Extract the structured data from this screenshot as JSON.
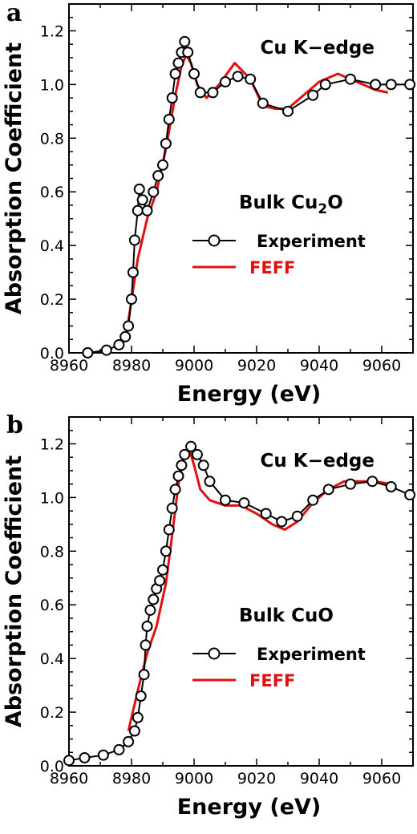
{
  "chart_data": [
    {
      "type": "line",
      "panel": "a",
      "xlabel": "Energy (eV)",
      "ylabel": "Absorption Coefficient",
      "xlim": [
        8960,
        9070
      ],
      "ylim": [
        0.0,
        1.3
      ],
      "xticks": [
        "8960",
        "8980",
        "9000",
        "9020",
        "9040",
        "9060"
      ],
      "yticks": [
        "0.0",
        "0.2",
        "0.4",
        "0.6",
        "0.8",
        "1.0",
        "1.2"
      ],
      "edge_label": "Cu K−edge",
      "sample": {
        "prefix": "Bulk Cu",
        "sub": "2",
        "suffix": "O"
      },
      "legend_placement": "center-right",
      "series": [
        {
          "name": "Experiment",
          "color": "#000000",
          "marker": "open-circle",
          "x": [
            8966,
            8972,
            8976,
            8978,
            8979,
            8980,
            8980.5,
            8981,
            8982,
            8982.5,
            8983.5,
            8985,
            8987,
            8988.5,
            8990,
            8991,
            8992,
            8993,
            8994,
            8995,
            8996,
            8997,
            8998,
            9000,
            9002,
            9006,
            9010,
            9014,
            9018,
            9022,
            9030,
            9038,
            9042,
            9050,
            9058,
            9063,
            9069
          ],
          "y": [
            0.0,
            0.01,
            0.03,
            0.06,
            0.1,
            0.2,
            0.3,
            0.42,
            0.53,
            0.61,
            0.57,
            0.53,
            0.6,
            0.66,
            0.7,
            0.78,
            0.87,
            0.95,
            1.04,
            1.08,
            1.12,
            1.16,
            1.12,
            1.04,
            0.97,
            0.97,
            1.01,
            1.03,
            1.02,
            0.93,
            0.9,
            0.96,
            1.0,
            1.02,
            1.0,
            1.0,
            1.0
          ]
        },
        {
          "name": "FEFF",
          "color": "#e01010",
          "marker": "none",
          "x": [
            8979,
            8982,
            8985,
            8988,
            8991,
            8994,
            8996,
            8997.5,
            8999,
            9001,
            9004,
            9008,
            9013,
            9018,
            9022,
            9026,
            9030,
            9035,
            9040,
            9046,
            9050,
            9054,
            9058,
            9062
          ],
          "y": [
            0.12,
            0.35,
            0.5,
            0.6,
            0.76,
            0.96,
            1.07,
            1.11,
            1.08,
            1.0,
            0.95,
            1.0,
            1.08,
            1.02,
            0.92,
            0.91,
            0.91,
            0.96,
            1.01,
            1.04,
            1.02,
            1.0,
            0.98,
            0.97
          ]
        }
      ]
    },
    {
      "type": "line",
      "panel": "b",
      "xlabel": "Energy (eV)",
      "ylabel": "Absorption Coefficient",
      "xlim": [
        8960,
        9070
      ],
      "ylim": [
        0.0,
        1.3
      ],
      "xticks": [
        "8960",
        "8980",
        "9000",
        "9020",
        "9040",
        "9060"
      ],
      "yticks": [
        "0.0",
        "0.2",
        "0.4",
        "0.6",
        "0.8",
        "1.0",
        "1.2"
      ],
      "edge_label": "Cu K−edge",
      "sample": {
        "prefix": "Bulk CuO",
        "sub": "",
        "suffix": ""
      },
      "legend_placement": "center-right",
      "series": [
        {
          "name": "Experiment",
          "color": "#000000",
          "marker": "open-circle",
          "x": [
            8960,
            8965,
            8971,
            8976,
            8979,
            8981,
            8982,
            8983,
            8984,
            8984.5,
            8985,
            8986,
            8987,
            8988,
            8989,
            8990,
            8991,
            8992,
            8993,
            8994,
            8995,
            8996,
            8997,
            8999,
            9001,
            9003,
            9005,
            9010,
            9016,
            9023,
            9028,
            9033,
            9038,
            9043,
            9050,
            9057,
            9063,
            9069
          ],
          "y": [
            0.02,
            0.03,
            0.04,
            0.06,
            0.09,
            0.13,
            0.18,
            0.26,
            0.34,
            0.45,
            0.52,
            0.58,
            0.62,
            0.66,
            0.69,
            0.73,
            0.8,
            0.88,
            0.96,
            1.03,
            1.08,
            1.12,
            1.16,
            1.19,
            1.16,
            1.12,
            1.06,
            0.99,
            0.98,
            0.94,
            0.91,
            0.93,
            0.99,
            1.03,
            1.05,
            1.06,
            1.04,
            1.01
          ]
        },
        {
          "name": "FEFF",
          "color": "#e01010",
          "marker": "none",
          "x": [
            8979,
            8982,
            8985,
            8988,
            8991,
            8993,
            8995,
            8997,
            8998.5,
            9000,
            9002,
            9005,
            9010,
            9015,
            9020,
            9025,
            9029,
            9033,
            9038,
            9043,
            9048,
            9053,
            9058,
            9063
          ],
          "y": [
            0.13,
            0.28,
            0.42,
            0.52,
            0.68,
            0.86,
            1.05,
            1.17,
            1.18,
            1.12,
            1.03,
            0.99,
            0.97,
            0.97,
            0.94,
            0.9,
            0.88,
            0.91,
            0.98,
            1.03,
            1.06,
            1.06,
            1.06,
            1.05
          ]
        }
      ]
    }
  ]
}
